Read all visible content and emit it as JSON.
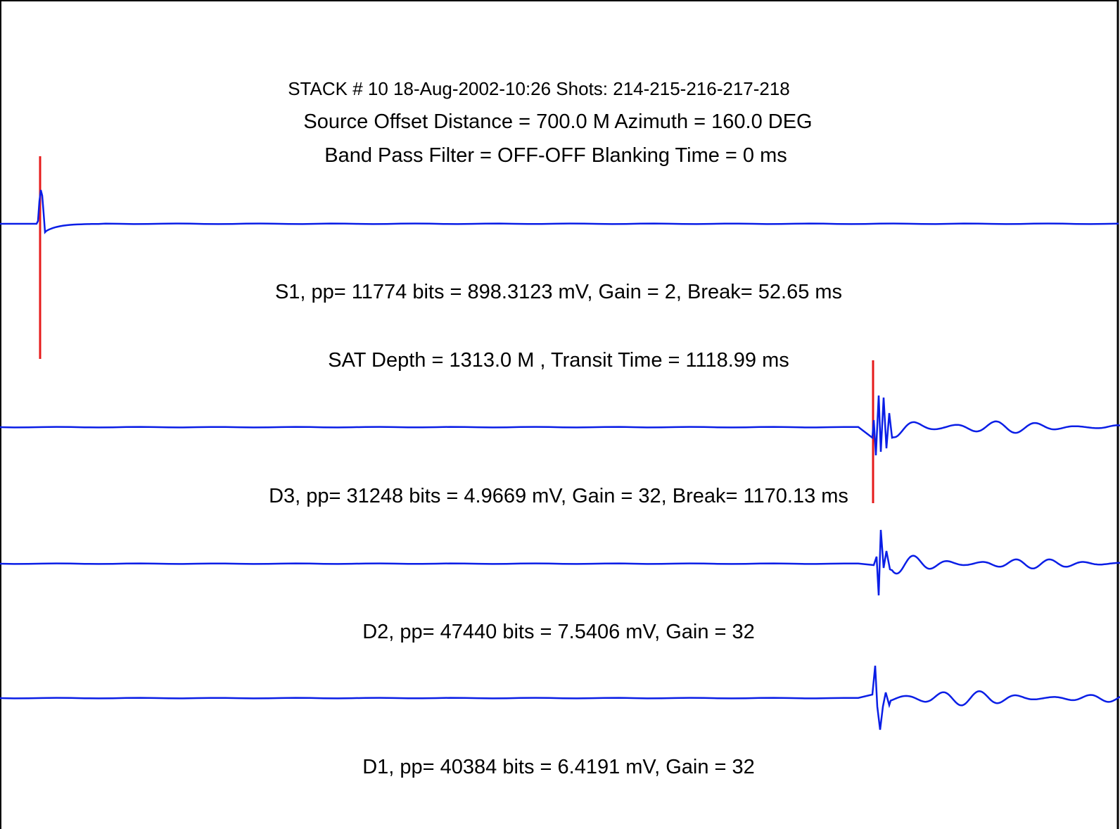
{
  "header": {
    "line1": "STACK # 10   18-Aug-2002-10:26   Shots: 214-215-216-217-218",
    "line2": "Source Offset  Distance = 700.0 M     Azimuth = 160.0 DEG",
    "line3": "Band Pass Filter = OFF-OFF  Blanking Time = 0   ms"
  },
  "chart_data": {
    "type": "line",
    "colors": {
      "trace": "#0a1ee6",
      "break_marker": "#e61a1a",
      "frame": "#000000"
    },
    "traces": [
      {
        "name": "S1",
        "caption": "S1, pp= 11774 bits = 898.3123 mV, Gain = 2, Break= 52.65 ms",
        "sublabel": "SAT   Depth = 1313.0 M  , Transit Time = 1118.99 ms",
        "pp_bits": 11774,
        "pp_mV": 898.3123,
        "gain": 2,
        "break_ms": 52.65
      },
      {
        "name": "D3",
        "caption": "D3, pp= 31248 bits = 4.9669 mV, Gain = 32, Break= 1170.13 ms",
        "pp_bits": 31248,
        "pp_mV": 4.9669,
        "gain": 32,
        "break_ms": 1170.13
      },
      {
        "name": "D2",
        "caption": "D2, pp= 47440 bits = 7.5406 mV, Gain = 32",
        "pp_bits": 47440,
        "pp_mV": 7.5406,
        "gain": 32
      },
      {
        "name": "D1",
        "caption": "D1, pp= 40384 bits = 6.4191 mV, Gain = 32",
        "pp_bits": 40384,
        "pp_mV": 6.4191,
        "gain": 32
      }
    ]
  }
}
